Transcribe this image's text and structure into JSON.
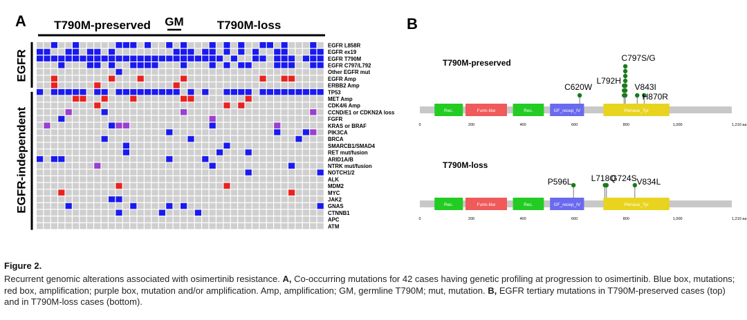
{
  "panel_a": {
    "label": "A",
    "group_headers": [
      "T790M-preserved",
      "GM",
      "T790M-loss"
    ],
    "side_labels": [
      "EGFR",
      "EGFR-independent"
    ],
    "rows": [
      "EGFR L858R",
      "EGFR ex19",
      "EGFR T790M",
      "EGFR C797/L792",
      "Other EGFR mut",
      "EGFR Amp",
      "ERBB2 Amp",
      "TP53",
      "MET Amp",
      "CDK4/6 Amp",
      "CCND/E1 or CDKN2A loss",
      "FGFR",
      "KRAS or BRAF",
      "PIK3CA",
      "BRCA",
      "SMARCB1/SMAD4",
      "RET mut/fusion",
      "ARID1A/B",
      "NTRK mut/fusion",
      "NOTCH1/2",
      "ALK",
      "MDM2",
      "MYC",
      "JAK2",
      "GNAS",
      "CTNNB1",
      "APC",
      "ATM"
    ],
    "colors": {
      "mutation": "#1a1aef",
      "amplification": "#e8231f",
      "mutation_or_amplification": "#9a3fd0",
      "empty": "#cfcfcf"
    }
  },
  "panel_b": {
    "label": "B",
    "tracks": [
      {
        "title": "T790M-preserved",
        "domains": [
          {
            "label": "Rec.",
            "start": 57,
            "end": 167,
            "color": "#22cc22"
          },
          {
            "label": "Furin-like",
            "start": 177,
            "end": 338,
            "color": "#f05a5a"
          },
          {
            "label": "Rec.",
            "start": 361,
            "end": 481,
            "color": "#22cc22"
          },
          {
            "label": "GF_recep_IV",
            "start": 505,
            "end": 637,
            "color": "#6a6aee"
          },
          {
            "label": "Pkinase_Tyr",
            "start": 712,
            "end": 968,
            "color": "#e8d31f"
          }
        ],
        "mutations": [
          {
            "label": "C620W",
            "pos": 620,
            "count": 1
          },
          {
            "label": "L792H",
            "pos": 792,
            "count": 3
          },
          {
            "label": "C797S/G",
            "pos": 797,
            "count": 7
          },
          {
            "label": "V843I",
            "pos": 843,
            "count": 1
          },
          {
            "label": "H870R",
            "pos": 870,
            "count": 1
          }
        ]
      },
      {
        "title": "T790M-loss",
        "domains": [
          {
            "label": "Rec.",
            "start": 57,
            "end": 167,
            "color": "#22cc22"
          },
          {
            "label": "Furin-like",
            "start": 177,
            "end": 338,
            "color": "#f05a5a"
          },
          {
            "label": "Rec.",
            "start": 361,
            "end": 481,
            "color": "#22cc22"
          },
          {
            "label": "GF_recep_IV",
            "start": 505,
            "end": 637,
            "color": "#6a6aee"
          },
          {
            "label": "Pkinase_Tyr",
            "start": 712,
            "end": 968,
            "color": "#e8d31f"
          }
        ],
        "mutations": [
          {
            "label": "P596L",
            "pos": 596,
            "count": 1
          },
          {
            "label": "L718Q",
            "pos": 718,
            "count": 1
          },
          {
            "label": "G724S",
            "pos": 724,
            "count": 1
          },
          {
            "label": "V834L",
            "pos": 834,
            "count": 1
          }
        ]
      }
    ],
    "axis_ticks": [
      "0",
      "200",
      "400",
      "600",
      "800",
      "1,000",
      "1,210 aa"
    ],
    "protein_length": 1210
  },
  "caption": {
    "title": "Figure 2.",
    "text_parts": [
      "Recurrent genomic alterations associated with osimertinib resistance. ",
      "A,",
      " Co-occurring mutations for 42 cases having genetic profiling at progression to osimertinib. Blue box, mutations; red box, amplification; purple box, mutation and/or amplification. Amp, amplification; GM, germline T790M; mut, mutation. ",
      "B,",
      " EGFR tertiary mutations in T790M-preserved cases (top) and in T790M-loss cases (bottom)."
    ]
  }
}
